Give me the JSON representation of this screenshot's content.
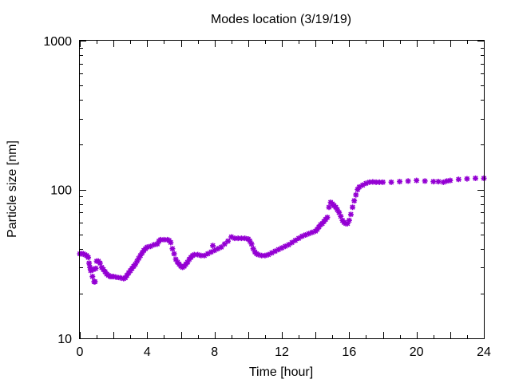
{
  "chart_data": {
    "type": "scatter",
    "title": "Modes location (3/19/19)",
    "xlabel": "Time [hour]",
    "ylabel": "Particle size [nm]",
    "xlim": [
      0,
      24
    ],
    "ylim": [
      10,
      1000
    ],
    "yscale": "log",
    "grid": false,
    "x_ticks": [
      0,
      4,
      8,
      12,
      16,
      20,
      24
    ],
    "x_tick_labels": [
      "0",
      "4",
      "8",
      "12",
      "16",
      "20",
      "24"
    ],
    "y_ticks": [
      10,
      100,
      1000
    ],
    "y_tick_labels": [
      "10",
      "100",
      "1000"
    ],
    "marker_color": "#9400d3",
    "series": [
      {
        "points": [
          [
            0.0,
            37
          ],
          [
            0.1,
            37
          ],
          [
            0.2,
            37
          ],
          [
            0.3,
            36.5
          ],
          [
            0.4,
            36
          ],
          [
            0.5,
            35
          ],
          [
            0.55,
            32
          ],
          [
            0.6,
            30
          ],
          [
            0.65,
            28.5
          ],
          [
            0.75,
            26
          ],
          [
            0.85,
            24
          ],
          [
            0.9,
            24
          ],
          [
            0.8,
            29
          ],
          [
            0.95,
            29.5
          ],
          [
            1.0,
            33
          ],
          [
            1.1,
            33
          ],
          [
            1.2,
            32
          ],
          [
            1.3,
            30
          ],
          [
            1.4,
            29
          ],
          [
            1.5,
            28
          ],
          [
            1.6,
            27
          ],
          [
            1.7,
            26.5
          ],
          [
            1.8,
            26
          ],
          [
            1.9,
            26
          ],
          [
            2.0,
            26
          ],
          [
            2.2,
            25.7
          ],
          [
            2.4,
            25.5
          ],
          [
            2.6,
            25.2
          ],
          [
            2.7,
            25.5
          ],
          [
            2.8,
            26.5
          ],
          [
            2.9,
            27.5
          ],
          [
            3.0,
            28.5
          ],
          [
            3.1,
            29.5
          ],
          [
            3.2,
            30.5
          ],
          [
            3.3,
            31.5
          ],
          [
            3.4,
            33
          ],
          [
            3.5,
            34.5
          ],
          [
            3.6,
            36
          ],
          [
            3.7,
            37.5
          ],
          [
            3.8,
            39
          ],
          [
            3.9,
            40
          ],
          [
            4.0,
            41
          ],
          [
            4.2,
            41.5
          ],
          [
            4.4,
            42.5
          ],
          [
            4.6,
            43
          ],
          [
            4.7,
            45
          ],
          [
            4.8,
            46
          ],
          [
            5.0,
            46
          ],
          [
            5.2,
            46
          ],
          [
            5.3,
            45.5
          ],
          [
            5.4,
            44
          ],
          [
            5.5,
            40
          ],
          [
            5.6,
            37
          ],
          [
            5.7,
            34
          ],
          [
            5.8,
            32.5
          ],
          [
            5.9,
            31.5
          ],
          [
            6.0,
            30.5
          ],
          [
            6.1,
            30
          ],
          [
            6.2,
            30.5
          ],
          [
            6.3,
            31.5
          ],
          [
            6.4,
            32.5
          ],
          [
            6.5,
            34
          ],
          [
            6.6,
            35
          ],
          [
            6.7,
            36
          ],
          [
            6.8,
            36.5
          ],
          [
            7.0,
            36.5
          ],
          [
            7.2,
            36
          ],
          [
            7.4,
            36
          ],
          [
            7.6,
            37
          ],
          [
            7.8,
            38
          ],
          [
            7.9,
            42
          ],
          [
            8.0,
            39
          ],
          [
            8.2,
            40
          ],
          [
            8.4,
            41
          ],
          [
            8.6,
            43
          ],
          [
            8.8,
            45
          ],
          [
            9.0,
            48
          ],
          [
            9.2,
            47
          ],
          [
            9.4,
            47
          ],
          [
            9.6,
            47
          ],
          [
            9.8,
            47
          ],
          [
            10.0,
            46.5
          ],
          [
            10.1,
            45
          ],
          [
            10.2,
            43
          ],
          [
            10.3,
            40
          ],
          [
            10.4,
            38
          ],
          [
            10.5,
            37
          ],
          [
            10.6,
            36.5
          ],
          [
            10.8,
            36
          ],
          [
            11.0,
            36
          ],
          [
            11.2,
            36.5
          ],
          [
            11.4,
            37.5
          ],
          [
            11.6,
            38.5
          ],
          [
            11.8,
            39.5
          ],
          [
            12.0,
            40.5
          ],
          [
            12.2,
            41.5
          ],
          [
            12.4,
            42.5
          ],
          [
            12.6,
            44
          ],
          [
            12.8,
            45.5
          ],
          [
            13.0,
            47
          ],
          [
            13.2,
            48.5
          ],
          [
            13.4,
            49.5
          ],
          [
            13.6,
            50.5
          ],
          [
            13.8,
            51.5
          ],
          [
            14.0,
            52.5
          ],
          [
            14.1,
            54
          ],
          [
            14.2,
            56
          ],
          [
            14.3,
            58
          ],
          [
            14.4,
            59
          ],
          [
            14.5,
            61
          ],
          [
            14.6,
            63
          ],
          [
            14.7,
            65
          ],
          [
            14.8,
            76
          ],
          [
            14.9,
            82
          ],
          [
            15.0,
            80
          ],
          [
            15.1,
            78
          ],
          [
            15.2,
            76
          ],
          [
            15.3,
            73
          ],
          [
            15.4,
            70
          ],
          [
            15.5,
            66
          ],
          [
            15.6,
            62
          ],
          [
            15.7,
            60
          ],
          [
            15.8,
            59
          ],
          [
            15.9,
            59
          ],
          [
            16.0,
            62
          ],
          [
            16.1,
            68
          ],
          [
            16.2,
            76
          ],
          [
            16.3,
            84
          ],
          [
            16.4,
            92
          ],
          [
            16.5,
            100
          ],
          [
            16.6,
            104
          ],
          [
            16.8,
            107
          ],
          [
            17.0,
            110
          ],
          [
            17.2,
            112
          ],
          [
            17.4,
            112.5
          ],
          [
            17.6,
            112
          ],
          [
            17.8,
            112
          ],
          [
            18.0,
            112
          ],
          [
            18.5,
            112
          ],
          [
            19.0,
            113
          ],
          [
            19.5,
            114
          ],
          [
            20.0,
            115
          ],
          [
            20.5,
            114
          ],
          [
            21.0,
            113
          ],
          [
            21.3,
            113
          ],
          [
            21.6,
            112
          ],
          [
            21.8,
            114
          ],
          [
            22.0,
            115
          ],
          [
            22.5,
            117
          ],
          [
            23.0,
            118
          ],
          [
            23.5,
            119
          ],
          [
            24.0,
            119
          ]
        ]
      }
    ]
  }
}
